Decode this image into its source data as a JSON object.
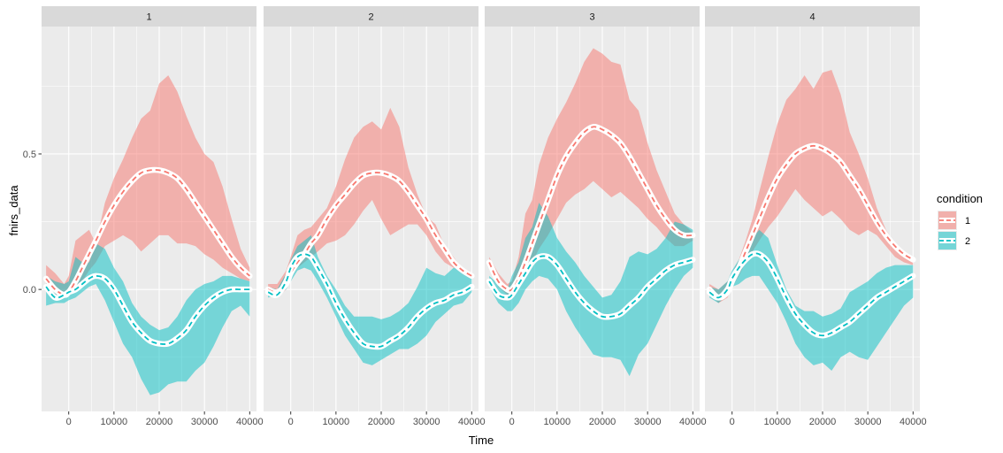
{
  "chart_data": {
    "type": "line",
    "xlabel": "Time",
    "ylabel": "fnirs_data",
    "x_ticks": [
      0,
      10000,
      20000,
      30000,
      40000
    ],
    "x_tick_labels": [
      "0",
      "10000",
      "20000",
      "30000",
      "40000"
    ],
    "y_ticks": [
      0.0,
      0.5
    ],
    "y_tick_labels": [
      "0.0",
      "0.5"
    ],
    "xlim": [
      -6000,
      41500
    ],
    "ylim": [
      -0.45,
      0.97
    ],
    "grid": true,
    "legend": {
      "title": "condition",
      "position": "right",
      "entries": [
        {
          "label": "1",
          "color": "#F8766D"
        },
        {
          "label": "2",
          "color": "#00BFC4"
        }
      ]
    },
    "colors": {
      "condition1": "#F8766D",
      "condition2": "#00BFC4",
      "panel_bg": "#EBEBEB",
      "strip_bg": "#D9D9D9"
    },
    "facets": [
      {
        "label": "1",
        "series": [
          {
            "name": "1",
            "x": [
              -5000,
              -3000,
              -1000,
              0,
              1500,
              3000,
              4500,
              6000,
              8000,
              10000,
              12000,
              14000,
              16000,
              18000,
              20000,
              22000,
              24000,
              26000,
              28000,
              30000,
              32000,
              34000,
              36000,
              38000,
              40000
            ],
            "y": [
              0.04,
              0.0,
              -0.02,
              -0.01,
              0.03,
              0.08,
              0.13,
              0.18,
              0.25,
              0.31,
              0.36,
              0.4,
              0.43,
              0.44,
              0.44,
              0.43,
              0.41,
              0.37,
              0.32,
              0.27,
              0.22,
              0.17,
              0.12,
              0.08,
              0.05
            ],
            "upper": [
              0.09,
              0.06,
              0.02,
              0.05,
              0.18,
              0.2,
              0.22,
              0.17,
              0.32,
              0.41,
              0.48,
              0.56,
              0.63,
              0.66,
              0.76,
              0.79,
              0.73,
              0.64,
              0.56,
              0.5,
              0.47,
              0.38,
              0.26,
              0.15,
              0.08
            ],
            "lower": [
              0.0,
              -0.04,
              -0.03,
              -0.02,
              -0.01,
              0.03,
              0.07,
              0.1,
              0.16,
              0.18,
              0.2,
              0.18,
              0.14,
              0.17,
              0.2,
              0.2,
              0.17,
              0.17,
              0.16,
              0.13,
              0.11,
              0.08,
              0.06,
              0.04,
              0.03
            ]
          },
          {
            "name": "2",
            "x": [
              -5000,
              -3000,
              -1000,
              0,
              1500,
              3000,
              4500,
              6000,
              8000,
              10000,
              12000,
              14000,
              16000,
              18000,
              20000,
              22000,
              24000,
              26000,
              28000,
              30000,
              32000,
              34000,
              36000,
              38000,
              40000
            ],
            "y": [
              0.01,
              -0.03,
              -0.02,
              -0.01,
              0.0,
              0.02,
              0.04,
              0.05,
              0.04,
              0.0,
              -0.06,
              -0.12,
              -0.16,
              -0.19,
              -0.2,
              -0.2,
              -0.18,
              -0.15,
              -0.1,
              -0.06,
              -0.03,
              -0.01,
              0.0,
              0.0,
              0.0
            ],
            "upper": [
              0.05,
              0.03,
              0.02,
              0.03,
              0.12,
              0.1,
              0.1,
              0.17,
              0.15,
              0.08,
              0.03,
              -0.05,
              -0.1,
              -0.13,
              -0.15,
              -0.14,
              -0.1,
              -0.04,
              0.0,
              0.02,
              0.03,
              0.05,
              0.05,
              0.04,
              0.03
            ],
            "lower": [
              -0.06,
              -0.05,
              -0.05,
              -0.04,
              -0.03,
              -0.01,
              0.01,
              0.02,
              -0.04,
              -0.12,
              -0.2,
              -0.25,
              -0.33,
              -0.39,
              -0.38,
              -0.35,
              -0.34,
              -0.34,
              -0.3,
              -0.27,
              -0.21,
              -0.14,
              -0.08,
              -0.06,
              -0.1
            ]
          }
        ]
      },
      {
        "label": "2",
        "series": [
          {
            "name": "1",
            "x": [
              -5000,
              -3000,
              -1000,
              0,
              1500,
              3000,
              4500,
              6000,
              8000,
              10000,
              12000,
              14000,
              16000,
              18000,
              20000,
              22000,
              24000,
              26000,
              28000,
              30000,
              32000,
              34000,
              36000,
              38000,
              40000
            ],
            "y": [
              0.0,
              -0.01,
              0.02,
              0.06,
              0.1,
              0.13,
              0.17,
              0.2,
              0.26,
              0.31,
              0.35,
              0.39,
              0.42,
              0.43,
              0.43,
              0.42,
              0.4,
              0.36,
              0.31,
              0.26,
              0.2,
              0.15,
              0.1,
              0.07,
              0.05
            ],
            "upper": [
              0.02,
              0.02,
              0.07,
              0.12,
              0.2,
              0.22,
              0.23,
              0.26,
              0.3,
              0.38,
              0.48,
              0.56,
              0.6,
              0.62,
              0.59,
              0.67,
              0.6,
              0.45,
              0.35,
              0.27,
              0.24,
              0.16,
              0.12,
              0.07,
              0.05
            ],
            "lower": [
              -0.02,
              -0.03,
              0.0,
              0.04,
              0.08,
              0.1,
              0.12,
              0.14,
              0.17,
              0.18,
              0.2,
              0.24,
              0.29,
              0.33,
              0.26,
              0.2,
              0.22,
              0.24,
              0.24,
              0.2,
              0.14,
              0.1,
              0.08,
              0.07,
              0.05
            ]
          },
          {
            "name": "2",
            "x": [
              -5000,
              -3000,
              -1000,
              0,
              1500,
              3000,
              4500,
              6000,
              8000,
              10000,
              12000,
              14000,
              16000,
              18000,
              20000,
              22000,
              24000,
              26000,
              28000,
              30000,
              32000,
              34000,
              36000,
              38000,
              40000
            ],
            "y": [
              -0.01,
              -0.02,
              0.03,
              0.08,
              0.12,
              0.13,
              0.12,
              0.08,
              0.02,
              -0.05,
              -0.11,
              -0.16,
              -0.2,
              -0.21,
              -0.21,
              -0.19,
              -0.17,
              -0.14,
              -0.1,
              -0.07,
              -0.05,
              -0.04,
              -0.02,
              -0.01,
              0.01
            ],
            "upper": [
              0.01,
              0.0,
              0.06,
              0.11,
              0.16,
              0.18,
              0.2,
              0.12,
              0.05,
              0.0,
              -0.06,
              -0.1,
              -0.1,
              -0.1,
              -0.11,
              -0.1,
              -0.08,
              -0.05,
              0.01,
              0.08,
              0.06,
              0.05,
              0.08,
              0.07,
              0.04
            ],
            "lower": [
              -0.03,
              -0.02,
              0.0,
              0.03,
              0.07,
              0.08,
              0.07,
              0.03,
              -0.03,
              -0.1,
              -0.17,
              -0.22,
              -0.27,
              -0.28,
              -0.26,
              -0.24,
              -0.22,
              -0.22,
              -0.2,
              -0.17,
              -0.12,
              -0.09,
              -0.06,
              -0.05,
              -0.01
            ]
          }
        ]
      },
      {
        "label": "3",
        "series": [
          {
            "name": "1",
            "x": [
              -5000,
              -3000,
              -1000,
              0,
              1500,
              3000,
              4500,
              6000,
              8000,
              10000,
              12000,
              14000,
              16000,
              18000,
              20000,
              22000,
              24000,
              26000,
              28000,
              30000,
              32000,
              34000,
              36000,
              38000,
              40000
            ],
            "y": [
              0.1,
              0.03,
              0.0,
              0.0,
              0.04,
              0.1,
              0.17,
              0.24,
              0.33,
              0.42,
              0.49,
              0.54,
              0.58,
              0.6,
              0.59,
              0.57,
              0.54,
              0.49,
              0.43,
              0.37,
              0.31,
              0.26,
              0.22,
              0.2,
              0.2
            ],
            "upper": [
              0.12,
              0.06,
              0.02,
              0.03,
              0.12,
              0.28,
              0.33,
              0.46,
              0.56,
              0.63,
              0.69,
              0.76,
              0.84,
              0.89,
              0.87,
              0.84,
              0.83,
              0.7,
              0.66,
              0.54,
              0.44,
              0.36,
              0.28,
              0.24,
              0.21
            ],
            "lower": [
              0.08,
              0.01,
              -0.02,
              -0.01,
              0.03,
              0.06,
              0.1,
              0.15,
              0.2,
              0.26,
              0.32,
              0.35,
              0.37,
              0.4,
              0.37,
              0.34,
              0.36,
              0.33,
              0.3,
              0.26,
              0.23,
              0.19,
              0.16,
              0.16,
              0.18
            ]
          },
          {
            "name": "2",
            "x": [
              -5000,
              -3000,
              -1000,
              0,
              1500,
              3000,
              4500,
              6000,
              8000,
              10000,
              12000,
              14000,
              16000,
              18000,
              20000,
              22000,
              24000,
              26000,
              28000,
              30000,
              32000,
              34000,
              36000,
              38000,
              40000
            ],
            "y": [
              0.03,
              -0.02,
              -0.03,
              -0.02,
              0.02,
              0.06,
              0.1,
              0.12,
              0.12,
              0.09,
              0.04,
              -0.01,
              -0.05,
              -0.08,
              -0.1,
              -0.1,
              -0.09,
              -0.06,
              -0.03,
              0.01,
              0.04,
              0.07,
              0.09,
              0.1,
              0.11
            ],
            "upper": [
              0.05,
              0.02,
              0.0,
              0.05,
              0.1,
              0.19,
              0.23,
              0.32,
              0.27,
              0.19,
              0.14,
              0.1,
              0.05,
              0.01,
              -0.03,
              -0.02,
              0.03,
              0.12,
              0.14,
              0.13,
              0.15,
              0.19,
              0.25,
              0.24,
              0.22
            ],
            "lower": [
              0.01,
              -0.05,
              -0.08,
              -0.08,
              -0.05,
              0.0,
              0.03,
              0.05,
              0.04,
              0.0,
              -0.08,
              -0.14,
              -0.19,
              -0.24,
              -0.25,
              -0.25,
              -0.26,
              -0.32,
              -0.24,
              -0.2,
              -0.13,
              -0.06,
              0.0,
              0.05,
              0.08
            ]
          }
        ]
      },
      {
        "label": "4",
        "series": [
          {
            "name": "1",
            "x": [
              -5000,
              -3000,
              -1000,
              0,
              1500,
              3000,
              4500,
              6000,
              8000,
              10000,
              12000,
              14000,
              16000,
              18000,
              20000,
              22000,
              24000,
              26000,
              28000,
              30000,
              32000,
              34000,
              36000,
              38000,
              40000
            ],
            "y": [
              0.0,
              -0.03,
              -0.01,
              0.03,
              0.08,
              0.14,
              0.2,
              0.26,
              0.34,
              0.41,
              0.46,
              0.5,
              0.52,
              0.53,
              0.52,
              0.5,
              0.47,
              0.42,
              0.37,
              0.31,
              0.25,
              0.2,
              0.16,
              0.13,
              0.11
            ],
            "upper": [
              0.02,
              0.0,
              0.03,
              0.06,
              0.11,
              0.18,
              0.26,
              0.36,
              0.49,
              0.61,
              0.7,
              0.74,
              0.79,
              0.74,
              0.8,
              0.81,
              0.72,
              0.58,
              0.5,
              0.41,
              0.3,
              0.22,
              0.17,
              0.14,
              0.12
            ],
            "lower": [
              -0.02,
              -0.05,
              -0.03,
              0.01,
              0.05,
              0.1,
              0.14,
              0.18,
              0.23,
              0.27,
              0.32,
              0.37,
              0.33,
              0.3,
              0.27,
              0.29,
              0.26,
              0.22,
              0.2,
              0.22,
              0.2,
              0.16,
              0.12,
              0.1,
              0.09
            ]
          },
          {
            "name": "2",
            "x": [
              -5000,
              -3000,
              -1000,
              0,
              1500,
              3000,
              4500,
              6000,
              8000,
              10000,
              12000,
              14000,
              16000,
              18000,
              20000,
              22000,
              24000,
              26000,
              28000,
              30000,
              32000,
              34000,
              36000,
              38000,
              40000
            ],
            "y": [
              -0.01,
              -0.03,
              0.0,
              0.04,
              0.08,
              0.11,
              0.13,
              0.13,
              0.1,
              0.04,
              -0.03,
              -0.09,
              -0.13,
              -0.16,
              -0.17,
              -0.16,
              -0.14,
              -0.12,
              -0.09,
              -0.06,
              -0.03,
              -0.01,
              0.01,
              0.03,
              0.05
            ],
            "upper": [
              0.01,
              0.0,
              0.03,
              0.07,
              0.11,
              0.14,
              0.19,
              0.22,
              0.19,
              0.09,
              0.0,
              -0.06,
              -0.08,
              -0.08,
              -0.1,
              -0.09,
              -0.07,
              -0.01,
              0.01,
              0.03,
              0.06,
              0.08,
              0.09,
              0.09,
              0.09
            ],
            "lower": [
              -0.03,
              -0.05,
              -0.02,
              0.01,
              0.02,
              0.04,
              0.05,
              0.05,
              0.0,
              -0.05,
              -0.12,
              -0.2,
              -0.25,
              -0.28,
              -0.27,
              -0.3,
              -0.25,
              -0.23,
              -0.25,
              -0.26,
              -0.21,
              -0.16,
              -0.11,
              -0.06,
              -0.03
            ]
          }
        ]
      }
    ]
  }
}
